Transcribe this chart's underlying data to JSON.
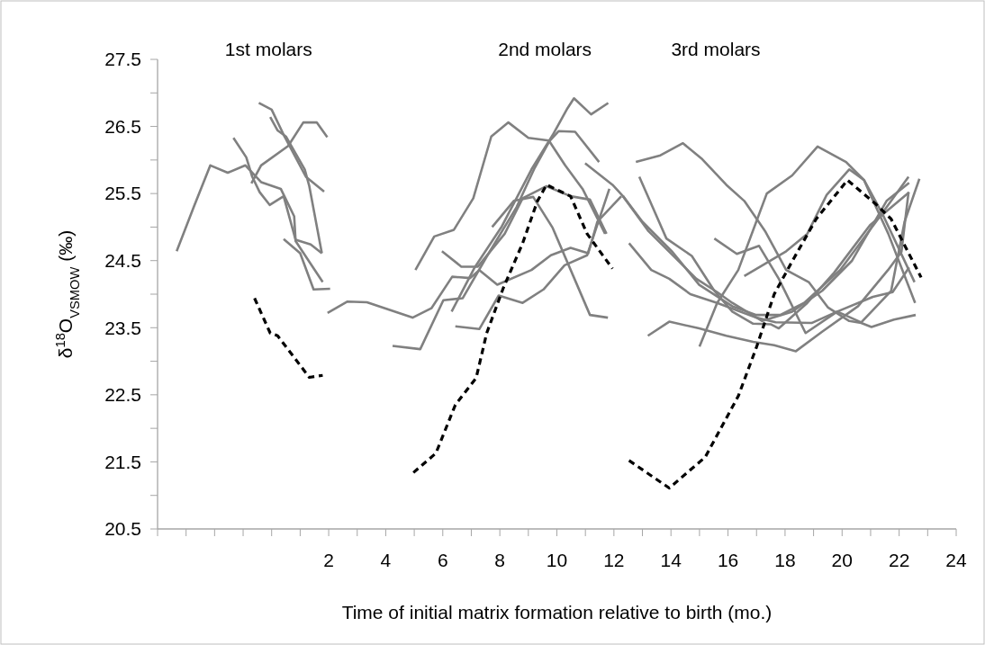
{
  "chart_data": {
    "type": "line",
    "xlabel": "Time of initial matrix formation relative to birth (mo.)",
    "ylabel": "δ$^{18}$O$_{VSMOW}$ (‰)",
    "xlim": [
      -4,
      24
    ],
    "xticks": [
      {
        "value": -4,
        "label": null
      },
      {
        "value": -3,
        "label": null
      },
      {
        "value": -2,
        "label": null
      },
      {
        "value": -1,
        "label": null
      },
      {
        "value": 0,
        "label": null
      },
      {
        "value": 1,
        "label": null
      },
      2,
      {
        "value": 3,
        "label": null
      },
      4,
      {
        "value": 5,
        "label": null
      },
      6,
      {
        "value": 7,
        "label": null
      },
      8,
      {
        "value": 9,
        "label": null
      },
      10,
      {
        "value": 11,
        "label": null
      },
      12,
      {
        "value": 13,
        "label": null
      },
      14,
      {
        "value": 15,
        "label": null
      },
      16,
      {
        "value": 17,
        "label": null
      },
      18,
      {
        "value": 19,
        "label": null
      },
      20,
      {
        "value": 21,
        "label": null
      },
      22,
      {
        "value": 23,
        "label": null
      },
      24
    ],
    "ylim": [
      20.5,
      27.5
    ],
    "yticks": [
      20.5,
      {
        "value": 21,
        "label": null
      },
      21.5,
      {
        "value": 22,
        "label": null
      },
      22.5,
      {
        "value": 23,
        "label": null
      },
      23.5,
      {
        "value": 24,
        "label": null
      },
      24.5,
      {
        "value": 25,
        "label": null
      },
      25.5,
      {
        "value": 26,
        "label": null
      },
      26.5,
      {
        "value": 27,
        "label": null
      },
      27.5
    ],
    "grid": false,
    "annotations": [
      "1st molars",
      "2nd molars",
      "3rd molars"
    ],
    "series": [
      {
        "color": "#808080",
        "line_style": "solid",
        "x": [
          -3.33,
          -2.73,
          -2.15,
          -1.54,
          -0.92,
          -0.37,
          0.32,
          0.79,
          0.84,
          1.79
        ],
        "values": [
          24.64,
          25.3,
          25.92,
          25.81,
          25.92,
          25.67,
          25.57,
          25.16,
          24.79,
          24.18
        ]
      },
      {
        "color": "#808080",
        "line_style": "solid",
        "x": [
          -1.34,
          -0.89,
          -0.68,
          -0.42,
          -0.07,
          0.42,
          0.84,
          1.37,
          1.76
        ],
        "values": [
          26.33,
          26.04,
          25.75,
          25.52,
          25.33,
          25.46,
          24.81,
          24.74,
          24.61
        ]
      },
      {
        "color": "#808080",
        "line_style": "solid",
        "x": [
          -0.05,
          0.21,
          0.5,
          1.16,
          1.32,
          1.76
        ],
        "values": [
          26.64,
          26.44,
          26.35,
          25.86,
          25.61,
          24.61
        ]
      },
      {
        "color": "#808080",
        "line_style": "solid",
        "x": [
          -0.45,
          0,
          0.45,
          1.2,
          1.84
        ],
        "values": [
          26.85,
          26.75,
          26.35,
          25.75,
          25.53
        ]
      },
      {
        "color": "#808080",
        "line_style": "solid",
        "x": [
          -0.71,
          -0.37,
          0.58,
          1.11,
          1.58,
          1.95
        ],
        "values": [
          25.65,
          25.92,
          26.21,
          26.56,
          26.56,
          26.34
        ]
      },
      {
        "color": "#808080",
        "line_style": "solid",
        "x": [
          0.42,
          1.0,
          1.47,
          2.05
        ],
        "values": [
          24.82,
          24.61,
          24.07,
          24.08
        ]
      },
      {
        "color": "#000000",
        "line_style": "dashed",
        "x": [
          -0.6,
          -0.05,
          0.21,
          1.32,
          1.79
        ],
        "values": [
          23.94,
          23.42,
          23.38,
          22.76,
          22.79
        ]
      },
      {
        "color": "#808080",
        "line_style": "solid",
        "x": [
          1.96,
          2.66,
          3.34,
          4.94,
          5.6,
          6.33,
          6.96,
          7.28,
          7.91,
          9.11,
          9.79,
          10.48,
          11.1,
          11.42,
          12.26
        ],
        "values": [
          23.72,
          23.89,
          23.88,
          23.65,
          23.79,
          24.26,
          24.24,
          24.36,
          24.14,
          24.36,
          24.58,
          24.69,
          24.61,
          25.08,
          25.46
        ]
      },
      {
        "color": "#808080",
        "line_style": "solid",
        "x": [
          5.04,
          5.7,
          6.39,
          7.07,
          7.7,
          8.3,
          9.0,
          9.72,
          10.29,
          10.9,
          11.69
        ],
        "values": [
          24.36,
          24.86,
          24.96,
          25.43,
          26.35,
          26.56,
          26.33,
          26.29,
          25.92,
          25.57,
          24.9
        ]
      },
      {
        "color": "#808080",
        "line_style": "solid",
        "x": [
          7.73,
          8.49,
          9.17,
          9.85,
          11.16,
          11.79
        ],
        "values": [
          25.0,
          25.39,
          25.45,
          24.99,
          23.69,
          23.65
        ]
      },
      {
        "color": "#808080",
        "line_style": "solid",
        "x": [
          6.31,
          7.12,
          8.07,
          9.11,
          9.85,
          10.37,
          10.6,
          11.2,
          11.8
        ],
        "values": [
          23.74,
          24.4,
          25.01,
          25.86,
          26.37,
          26.77,
          26.92,
          26.68,
          26.85
        ]
      },
      {
        "color": "#808080",
        "line_style": "solid",
        "x": [
          5.97,
          6.65,
          7.23,
          8.17,
          8.8,
          9.64,
          10.48,
          11.16,
          11.74
        ],
        "values": [
          24.64,
          24.41,
          24.41,
          24.9,
          25.43,
          25.61,
          25.46,
          25.41,
          24.9
        ]
      },
      {
        "color": "#808080",
        "line_style": "solid",
        "x": [
          4.24,
          5.21,
          6.02,
          6.7,
          7.54,
          8.59,
          9.22,
          9.74,
          10.06,
          10.64,
          11.48
        ],
        "values": [
          23.23,
          23.18,
          23.91,
          23.94,
          24.56,
          25.3,
          25.88,
          26.28,
          26.43,
          26.42,
          25.97
        ]
      },
      {
        "color": "#808080",
        "line_style": "solid",
        "x": [
          6.44,
          7.28,
          7.96,
          8.8,
          9.53,
          10.27,
          11.06,
          11.84
        ],
        "values": [
          23.52,
          23.48,
          23.98,
          23.87,
          24.07,
          24.43,
          24.58,
          25.57
        ]
      },
      {
        "color": "#000000",
        "line_style": "dashed",
        "x": [
          4.97,
          5.76,
          6.44,
          7.17,
          7.54,
          8.12,
          8.8,
          9.32,
          9.64,
          10.48,
          11.06,
          11.95
        ],
        "values": [
          21.34,
          21.63,
          22.35,
          22.75,
          23.42,
          24.09,
          24.76,
          25.39,
          25.63,
          25.46,
          24.9,
          24.38
        ]
      },
      {
        "color": "#808080",
        "line_style": "solid",
        "x": [
          12.77,
          13.63,
          14.42,
          15.1,
          15.94,
          16.57,
          17.3,
          18.04,
          18.83,
          19.51,
          20.25,
          20.67,
          21.03,
          21.82,
          22.58
        ],
        "values": [
          25.97,
          26.07,
          26.25,
          26.01,
          25.63,
          25.39,
          24.94,
          24.36,
          24.18,
          23.8,
          23.6,
          23.57,
          23.51,
          23.62,
          23.69
        ]
      },
      {
        "color": "#808080",
        "line_style": "solid",
        "x": [
          12.89,
          13.84,
          14.73,
          15.52,
          16.15,
          16.88,
          17.51,
          17.78,
          18.78,
          19.72,
          20.98,
          22.35
        ],
        "values": [
          25.75,
          24.83,
          24.57,
          24.05,
          23.74,
          23.56,
          23.55,
          23.49,
          23.87,
          24.32,
          25.03,
          25.52
        ]
      },
      {
        "color": "#808080",
        "line_style": "solid",
        "x": [
          12.53,
          13.31,
          13.94,
          14.68,
          15.62,
          16.99,
          17.67,
          18.93,
          19.83,
          21.08,
          21.77,
          22.35
        ],
        "values": [
          24.76,
          24.36,
          24.23,
          24.0,
          23.87,
          23.65,
          23.58,
          23.57,
          23.74,
          23.96,
          24.03,
          24.4
        ]
      },
      {
        "color": "#808080",
        "line_style": "solid",
        "x": [
          13.19,
          13.94,
          14.99,
          15.94,
          16.88,
          17.62,
          18.38,
          19.3,
          20.56,
          21.61,
          22.08,
          22.33
        ],
        "values": [
          23.38,
          23.59,
          23.49,
          23.38,
          23.29,
          23.24,
          23.15,
          23.44,
          23.82,
          24.36,
          24.63,
          25.52
        ]
      },
      {
        "color": "#808080",
        "line_style": "solid",
        "x": [
          10.99,
          11.95,
          12.32,
          13.21,
          14.89,
          15.62,
          16.15,
          17.2,
          18.25,
          19.3,
          20.35,
          21.56,
          22.35
        ],
        "values": [
          25.95,
          25.63,
          25.46,
          24.94,
          24.23,
          24.03,
          23.87,
          23.6,
          23.74,
          24.05,
          24.5,
          25.39,
          25.66
        ]
      },
      {
        "color": "#808080",
        "line_style": "solid",
        "x": [
          12.32,
          13.0,
          14.05,
          14.99,
          16.15,
          16.99,
          17.83,
          18.67,
          19.93,
          21.19,
          22.33
        ],
        "values": [
          25.46,
          25.08,
          24.63,
          24.14,
          23.82,
          23.69,
          23.69,
          23.87,
          24.36,
          25.08,
          25.75
        ]
      },
      {
        "color": "#808080",
        "line_style": "solid",
        "x": [
          15.0,
          15.62,
          16.36,
          17.36,
          18.25,
          19.14,
          20.14,
          20.77,
          21.09,
          21.62,
          22.56
        ],
        "values": [
          23.22,
          23.87,
          24.36,
          25.5,
          25.77,
          26.2,
          25.97,
          25.7,
          25.39,
          24.9,
          23.87
        ]
      },
      {
        "color": "#808080",
        "line_style": "solid",
        "x": [
          15.52,
          16.31,
          17.09,
          17.78,
          18.72,
          19.83,
          20.67,
          21.72,
          22.19,
          22.71
        ],
        "values": [
          24.83,
          24.6,
          24.72,
          24.23,
          23.42,
          23.74,
          23.58,
          24.05,
          25.08,
          25.72
        ]
      },
      {
        "color": "#808080",
        "line_style": "solid",
        "x": [
          16.57,
          18.04,
          18.78,
          19.46,
          20.25,
          20.77,
          21.4,
          22.54
        ],
        "values": [
          24.27,
          24.64,
          24.9,
          25.48,
          25.86,
          25.7,
          25.21,
          24.18
        ]
      },
      {
        "color": "#000000",
        "line_style": "dashed",
        "x": [
          12.53,
          13.94,
          15.2,
          16.36,
          16.99,
          17.62,
          18.25,
          19.09,
          20.19,
          21.19,
          21.72,
          22.77
        ],
        "values": [
          21.52,
          21.11,
          21.57,
          22.48,
          23.2,
          24.0,
          24.49,
          25.12,
          25.7,
          25.34,
          25.12,
          24.25
        ]
      }
    ]
  }
}
